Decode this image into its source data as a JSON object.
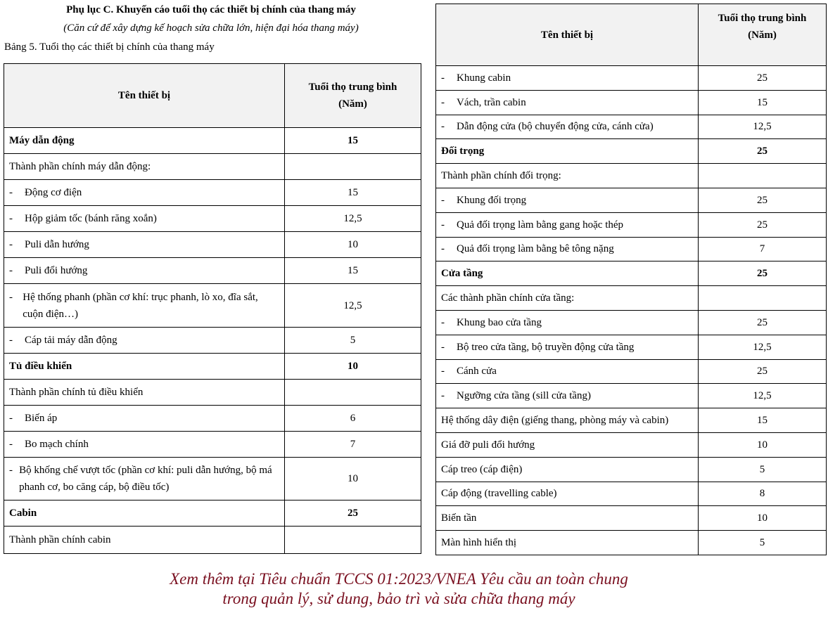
{
  "title": "Phụ lục C. Khuyến cáo tuổi thọ các thiết bị chính của thang máy",
  "subtitle": "(Căn cứ để xây dựng kế hoạch sửa chữa lớn, hiện đại hóa thang máy)",
  "caption": "Bảng 5. Tuổi thọ các thiết bị chính của thang máy",
  "columns": {
    "device": "Tên thiết bị",
    "lifespan_line1": "Tuổi thọ trung bình",
    "lifespan_line2": "(Năm)"
  },
  "left_rows": [
    {
      "name": "Máy dẫn động",
      "value": "15",
      "type": "group"
    },
    {
      "name": "Thành phần chính máy dẫn động:",
      "value": "",
      "type": "sub"
    },
    {
      "name": "Động cơ điện",
      "value": "15",
      "type": "item"
    },
    {
      "name": "Hộp giảm tốc (bánh răng xoắn)",
      "value": "12,5",
      "type": "item"
    },
    {
      "name": "Puli dẫn hướng",
      "value": "10",
      "type": "item"
    },
    {
      "name": "Puli đổi hướng",
      "value": "15",
      "type": "item"
    },
    {
      "name": "Hệ thống phanh (phần cơ khí: trục phanh, lò xo, đĩa sắt, cuộn điện…)",
      "value": "12,5",
      "type": "item"
    },
    {
      "name": "Cáp tải máy dẫn động",
      "value": "5",
      "type": "item"
    },
    {
      "name": "Tủ điều khiển",
      "value": "10",
      "type": "group"
    },
    {
      "name": "Thành phần chính tủ điều khiển",
      "value": "",
      "type": "sub"
    },
    {
      "name": "Biến áp",
      "value": "6",
      "type": "item"
    },
    {
      "name": "Bo mạch chính",
      "value": "7",
      "type": "item"
    },
    {
      "name": "Bộ khống chế vượt tốc (phần cơ khí: puli dẫn hướng, bộ má phanh cơ, bo căng cáp, bộ điều tốc)",
      "value": "10",
      "type": "item"
    },
    {
      "name": "Cabin",
      "value": "25",
      "type": "group"
    },
    {
      "name": "Thành phần chính cabin",
      "value": "",
      "type": "sub"
    }
  ],
  "right_rows": [
    {
      "name": "Khung cabin",
      "value": "25",
      "type": "item"
    },
    {
      "name": "Vách, trần cabin",
      "value": "15",
      "type": "item"
    },
    {
      "name": "Dẫn động cửa (bộ chuyển động cửa, cánh cửa)",
      "value": "12,5",
      "type": "item"
    },
    {
      "name": "Đối trọng",
      "value": "25",
      "type": "group"
    },
    {
      "name": "Thành phần chính đối trọng:",
      "value": "",
      "type": "sub"
    },
    {
      "name": "Khung đối trọng",
      "value": "25",
      "type": "item"
    },
    {
      "name": "Quả đối trọng làm bằng gang hoặc thép",
      "value": "25",
      "type": "item"
    },
    {
      "name": "Quả đối trọng làm bằng bê tông nặng",
      "value": "7",
      "type": "item"
    },
    {
      "name": "Cửa tầng",
      "value": "25",
      "type": "group"
    },
    {
      "name": "Các thành phần chính cửa tầng:",
      "value": "",
      "type": "sub"
    },
    {
      "name": "Khung bao cửa tầng",
      "value": "25",
      "type": "item"
    },
    {
      "name": "Bộ treo cửa tầng, bộ truyền động cửa tầng",
      "value": "12,5",
      "type": "item"
    },
    {
      "name": "Cánh cửa",
      "value": "25",
      "type": "item"
    },
    {
      "name": "Ngưỡng cửa tầng (sill cửa tầng)",
      "value": "12,5",
      "type": "item"
    },
    {
      "name": "Hệ thống dây điện (giếng thang, phòng máy và cabin)",
      "value": "15",
      "type": "sub"
    },
    {
      "name": "Giá đỡ puli đổi hướng",
      "value": "10",
      "type": "sub"
    },
    {
      "name": "Cáp treo (cáp điện)",
      "value": "5",
      "type": "sub"
    },
    {
      "name": "Cáp động (travelling cable)",
      "value": "8",
      "type": "sub"
    },
    {
      "name": "Biến tần",
      "value": "10",
      "type": "sub"
    },
    {
      "name": "Màn hình hiển thị",
      "value": "5",
      "type": "sub"
    }
  ],
  "dash": "-",
  "footer": {
    "line1": "Xem thêm tại Tiêu chuẩn TCCS 01:2023/VNEA Yêu cầu an toàn chung",
    "line2": "trong quản lý, sử dung, bảo trì và sửa chữa thang máy"
  }
}
